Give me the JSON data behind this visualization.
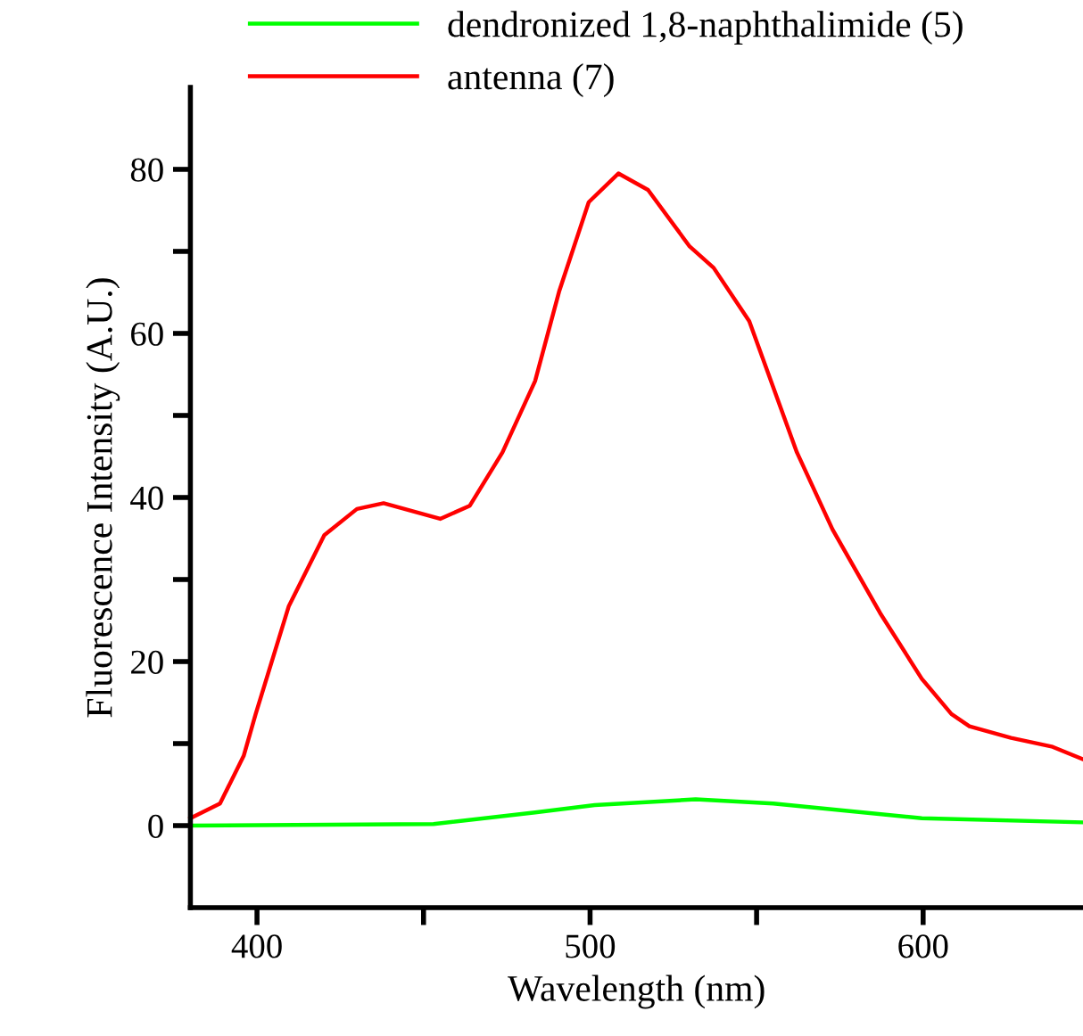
{
  "chart_data": {
    "type": "line",
    "xlabel": "Wavelength (nm)",
    "ylabel": "Fluorescence Intensity (A.U.)",
    "xlim": [
      380,
      648
    ],
    "xticks": [
      400,
      {
        "value": 450,
        "label": null
      },
      500,
      {
        "value": 550,
        "label": null
      },
      600
    ],
    "ylim": [
      -10,
      90
    ],
    "yticks": [
      0,
      {
        "value": 10,
        "label": null
      },
      20,
      {
        "value": 30,
        "label": null
      },
      40,
      {
        "value": 50,
        "label": null
      },
      60,
      {
        "value": 70,
        "label": null
      },
      80
    ],
    "grid": false,
    "legend": "top left",
    "marker": "none",
    "line_style": "solid",
    "series": [
      {
        "name": "dendronized 1,8-naphthalimide (5)",
        "color": "#00ff00",
        "x": [
          380,
          453,
          483.5,
          501.4,
          531.7,
          555,
          599.6,
          647.9
        ],
        "values": [
          0,
          0.2,
          1.6,
          2.5,
          3.2,
          2.7,
          0.9,
          0.4
        ]
      },
      {
        "name": "antenna (7)",
        "color": "#ff0000",
        "x": [
          380,
          388.9,
          396,
          399.6,
          409.5,
          420.2,
          430,
          438,
          455,
          463.9,
          473.7,
          483.5,
          490.7,
          499.6,
          508.5,
          517.4,
          529.9,
          537.1,
          547.8,
          562.1,
          572.8,
          587.1,
          599.6,
          608.5,
          613.9,
          626.4,
          638.9,
          647.9
        ],
        "values": [
          0.9,
          2.7,
          8.5,
          13.6,
          26.7,
          35.4,
          38.6,
          39.3,
          37.4,
          39,
          45.5,
          54.2,
          65.1,
          76,
          79.5,
          77.5,
          70.6,
          68,
          61.5,
          45.5,
          36.1,
          25.9,
          17.9,
          13.6,
          12.1,
          10.7,
          9.6,
          8.1
        ]
      }
    ]
  }
}
